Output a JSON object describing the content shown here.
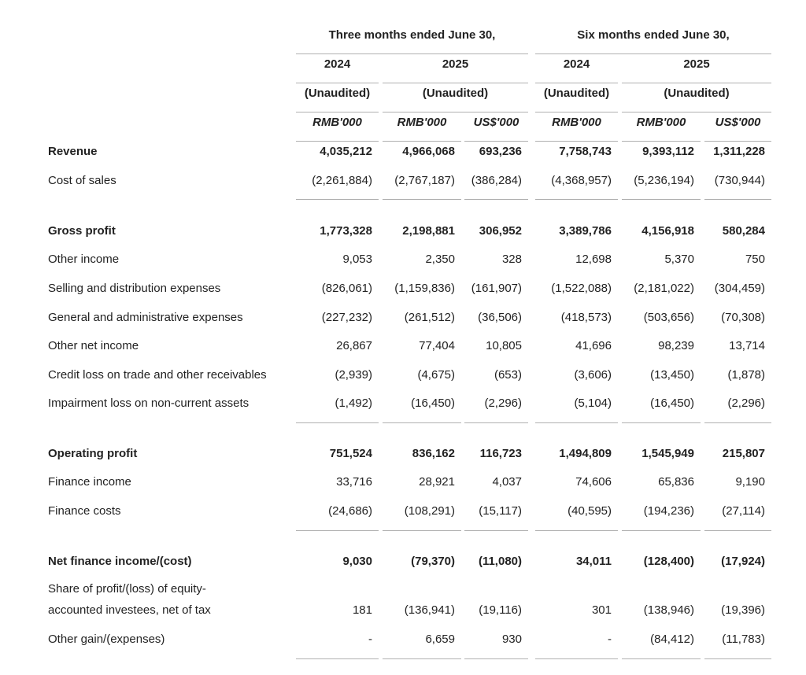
{
  "header": {
    "group1_title": "Three months ended June 30,",
    "group2_title": "Six months ended June 30,",
    "years": [
      "2024",
      "2025",
      "2024",
      "2025"
    ],
    "audit": [
      "(Unaudited)",
      "(Unaudited)",
      "(Unaudited)",
      "(Unaudited)"
    ],
    "currencies": [
      "RMB'000",
      "RMB'000",
      "US$'000",
      "RMB'000",
      "RMB'000",
      "US$'000"
    ]
  },
  "rows": [
    {
      "label": "Revenue",
      "values": [
        "4,035,212",
        "4,966,068",
        "693,236",
        "7,758,743",
        "9,393,112",
        "1,311,228"
      ]
    },
    {
      "label": "Cost of sales",
      "values": [
        "(2,261,884)",
        "(2,767,187)",
        "(386,284)",
        "(4,368,957)",
        "(5,236,194)",
        "(730,944)"
      ]
    },
    {
      "label": "Gross profit",
      "values": [
        "1,773,328",
        "2,198,881",
        "306,952",
        "3,389,786",
        "4,156,918",
        "580,284"
      ]
    },
    {
      "label": "Other income",
      "values": [
        "9,053",
        "2,350",
        "328",
        "12,698",
        "5,370",
        "750"
      ]
    },
    {
      "label": "Selling and distribution expenses",
      "values": [
        "(826,061)",
        "(1,159,836)",
        "(161,907)",
        "(1,522,088)",
        "(2,181,022)",
        "(304,459)"
      ]
    },
    {
      "label": "General and administrative expenses",
      "values": [
        "(227,232)",
        "(261,512)",
        "(36,506)",
        "(418,573)",
        "(503,656)",
        "(70,308)"
      ]
    },
    {
      "label": "Other net income",
      "values": [
        "26,867",
        "77,404",
        "10,805",
        "41,696",
        "98,239",
        "13,714"
      ]
    },
    {
      "label": "Credit loss on trade and other receivables",
      "values": [
        "(2,939)",
        "(4,675)",
        "(653)",
        "(3,606)",
        "(13,450)",
        "(1,878)"
      ]
    },
    {
      "label": "Impairment loss on non-current assets",
      "values": [
        "(1,492)",
        "(16,450)",
        "(2,296)",
        "(5,104)",
        "(16,450)",
        "(2,296)"
      ]
    },
    {
      "label": "Operating profit",
      "values": [
        "751,524",
        "836,162",
        "116,723",
        "1,494,809",
        "1,545,949",
        "215,807"
      ]
    },
    {
      "label": "Finance income",
      "values": [
        "33,716",
        "28,921",
        "4,037",
        "74,606",
        "65,836",
        "9,190"
      ]
    },
    {
      "label": "Finance costs",
      "values": [
        "(24,686)",
        "(108,291)",
        "(15,117)",
        "(40,595)",
        "(194,236)",
        "(27,114)"
      ]
    },
    {
      "label": "Net finance income/(cost)",
      "values": [
        "9,030",
        "(79,370)",
        "(11,080)",
        "34,011",
        "(128,400)",
        "(17,924)"
      ]
    },
    {
      "label": "Share of profit/(loss) of equity-",
      "label2": "accounted investees, net of tax",
      "values": [
        "181",
        "(136,941)",
        "(19,116)",
        "301",
        "(138,946)",
        "(19,396)"
      ]
    },
    {
      "label": "Other gain/(expenses)",
      "values": [
        "-",
        "6,659",
        "930",
        "-",
        "(84,412)",
        "(11,783)"
      ]
    }
  ]
}
